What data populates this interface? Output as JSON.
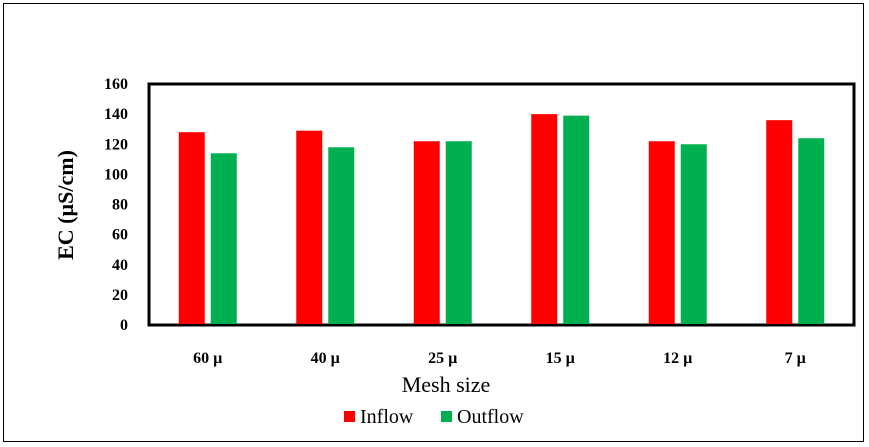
{
  "chart_data": {
    "type": "bar",
    "categories": [
      "60 µ",
      "40 µ",
      "25 µ",
      "15 µ",
      "12 µ",
      "7 µ"
    ],
    "series": [
      {
        "name": "Inflow",
        "color": "#ff0000",
        "values": [
          128,
          129,
          122,
          140,
          122,
          136
        ]
      },
      {
        "name": "Outflow",
        "color": "#00b050",
        "values": [
          114,
          118,
          122,
          139,
          120,
          124
        ]
      }
    ],
    "xlabel": "Mesh size",
    "ylabel": "EC (µS/cm)",
    "ylim": [
      0,
      160
    ],
    "yticks": [
      0,
      20,
      40,
      60,
      80,
      100,
      120,
      140,
      160
    ],
    "grid": false,
    "legend_position": "bottom"
  }
}
